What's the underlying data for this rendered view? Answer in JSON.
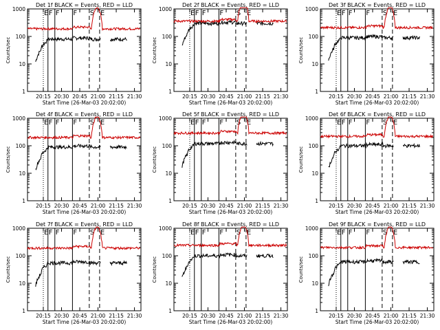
{
  "figure": {
    "background": "#ffffff"
  },
  "colors": {
    "events": "#000000",
    "lld": "#cc0000"
  },
  "shared_axes": {
    "xlabel": "Start Time (26-Mar-03 20:02:00)",
    "ylabel": "Counts/sec",
    "x_range_sec": [
      0,
      5600
    ],
    "y_log_range": [
      1,
      1000
    ],
    "y_ticks": [
      1,
      10,
      100,
      1000
    ],
    "y_tick_labels": [
      "1",
      "10",
      "100",
      "1000"
    ],
    "x_tick_labels": [
      "20:15",
      "20:30",
      "20:45",
      "21:00",
      "21:15",
      "21:30"
    ],
    "markers": [
      {
        "label": "E",
        "style": "dotted"
      },
      {
        "label": "F",
        "style": "solid"
      },
      {
        "label": "F",
        "style": "solid"
      },
      {
        "label": "F",
        "style": "solid"
      },
      {
        "label": "S",
        "style": "dashed"
      },
      {
        "label": "E",
        "style": "dashed"
      }
    ]
  },
  "chart_data": [
    {
      "type": "line",
      "title": "Det 1f BLACK = Events, RED = LLD",
      "x_tick_labels": [
        "20:15",
        "20:30",
        "20:45",
        "21:00",
        "21:15",
        "21:30"
      ],
      "series": [
        {
          "name": "Events",
          "color": "#000000",
          "level": 80
        },
        {
          "name": "LLD",
          "color": "#cc0000",
          "level": 190
        }
      ]
    },
    {
      "type": "line",
      "title": "Det 2f BLACK = Events, RED = LLD",
      "x_tick_labels": [
        "20:15",
        "20:30",
        "20:45",
        "21:00",
        "21:15",
        "21:30"
      ],
      "series": [
        {
          "name": "Events",
          "color": "#000000",
          "level": 300
        },
        {
          "name": "LLD",
          "color": "#cc0000",
          "level": 360
        }
      ]
    },
    {
      "type": "line",
      "title": "Det 3f BLACK = Events, RED = LLD",
      "x_tick_labels": [
        "20:15",
        "20:30",
        "20:45",
        "21:00",
        "21:15",
        "21:30"
      ],
      "series": [
        {
          "name": "Events",
          "color": "#000000",
          "level": 90
        },
        {
          "name": "LLD",
          "color": "#cc0000",
          "level": 210
        }
      ]
    },
    {
      "type": "line",
      "title": "Det 4f BLACK = Events, RED = LLD",
      "x_tick_labels": [
        "20:15",
        "20:30",
        "20:45",
        "21:00",
        "21:15",
        "21:30"
      ],
      "series": [
        {
          "name": "Events",
          "color": "#000000",
          "level": 90
        },
        {
          "name": "LLD",
          "color": "#cc0000",
          "level": 200
        }
      ]
    },
    {
      "type": "line",
      "title": "Det 5f BLACK = Events, RED = LLD",
      "x_tick_labels": [
        "20:15",
        "20:30",
        "20:45",
        "21:00",
        "21:15",
        "21:30"
      ],
      "series": [
        {
          "name": "Events",
          "color": "#000000",
          "level": 120
        },
        {
          "name": "LLD",
          "color": "#cc0000",
          "level": 290
        }
      ]
    },
    {
      "type": "line",
      "title": "Det 6f BLACK = Events, RED = LLD",
      "x_tick_labels": [
        "20:15",
        "20:30",
        "20:45",
        "21:00",
        "21:15",
        "21:30"
      ],
      "series": [
        {
          "name": "Events",
          "color": "#000000",
          "level": 100
        },
        {
          "name": "LLD",
          "color": "#cc0000",
          "level": 220
        }
      ]
    },
    {
      "type": "line",
      "title": "Det 7f BLACK = Events, RED = LLD",
      "x_tick_labels": [
        "20:15",
        "20:30",
        "20:45",
        "21:00",
        "21:15",
        "21:30"
      ],
      "series": [
        {
          "name": "Events",
          "color": "#000000",
          "level": 55
        },
        {
          "name": "LLD",
          "color": "#cc0000",
          "level": 190
        }
      ]
    },
    {
      "type": "line",
      "title": "Det 8f BLACK = Events, RED = LLD",
      "x_tick_labels": [
        "20:15",
        "20:30",
        "20:45",
        "21:00",
        "21:15",
        "21:30"
      ],
      "series": [
        {
          "name": "Events",
          "color": "#000000",
          "level": 100
        },
        {
          "name": "LLD",
          "color": "#cc0000",
          "level": 240
        }
      ]
    },
    {
      "type": "line",
      "title": "Det 9f BLACK = Events, RED = LLD",
      "x_tick_labels": [
        "20:15",
        "20:30",
        "20:45",
        "21:00",
        "21:15",
        "21:30"
      ],
      "series": [
        {
          "name": "Events",
          "color": "#000000",
          "level": 60
        },
        {
          "name": "LLD",
          "color": "#cc0000",
          "level": 200
        }
      ]
    }
  ]
}
